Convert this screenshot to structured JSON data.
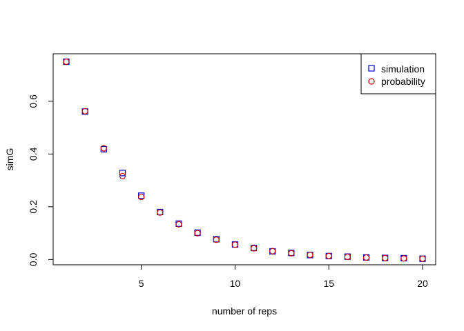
{
  "chart_data": {
    "type": "scatter",
    "title": "",
    "xlabel": "number of reps",
    "ylabel": "simG",
    "xlim": [
      0.3,
      20.7
    ],
    "ylim": [
      -0.02,
      0.78
    ],
    "x_ticks": [
      5,
      10,
      15,
      20
    ],
    "y_ticks": [
      0.0,
      0.2,
      0.4,
      0.6
    ],
    "x_tick_labels": [
      "5",
      "10",
      "15",
      "20"
    ],
    "y_tick_labels": [
      "0.0",
      "0.2",
      "0.4",
      "0.6"
    ],
    "grid": false,
    "legend_position": "top-right",
    "x": [
      1,
      2,
      3,
      4,
      5,
      6,
      7,
      8,
      9,
      10,
      11,
      12,
      13,
      14,
      15,
      16,
      17,
      18,
      19,
      20
    ],
    "series": [
      {
        "name": "simulation",
        "marker": "square",
        "color": "#0000cd",
        "values": [
          0.75,
          0.561,
          0.418,
          0.328,
          0.242,
          0.18,
          0.136,
          0.102,
          0.077,
          0.057,
          0.044,
          0.031,
          0.025,
          0.017,
          0.013,
          0.011,
          0.008,
          0.006,
          0.005,
          0.003
        ]
      },
      {
        "name": "probability",
        "marker": "circle",
        "color": "#cd0000",
        "values": [
          0.75,
          0.5625,
          0.4219,
          0.3164,
          0.2373,
          0.178,
          0.1335,
          0.1001,
          0.0751,
          0.0563,
          0.0422,
          0.0317,
          0.0238,
          0.0178,
          0.0134,
          0.01,
          0.0075,
          0.0056,
          0.0042,
          0.0032
        ]
      }
    ]
  }
}
